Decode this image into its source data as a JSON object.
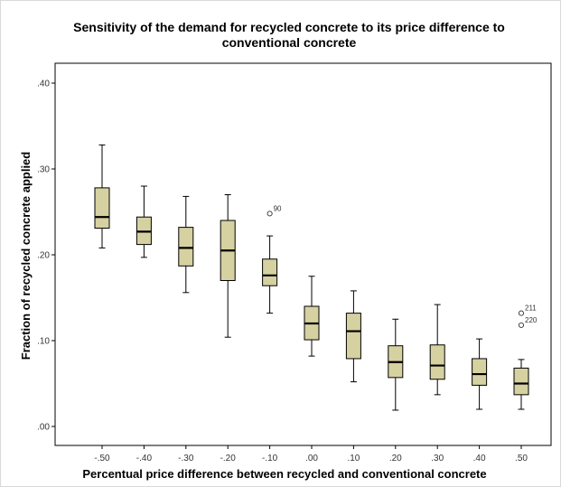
{
  "chart_data": {
    "type": "boxplot",
    "title": "Sensitivity of the demand for recycled concrete to its price difference to conventional concrete",
    "xlabel": "Percentual price difference between recycled and conventional concrete",
    "ylabel": "Fraction of recycled concrete applied",
    "ylim": [
      0.0,
      0.44
    ],
    "yticks": [
      0.0,
      0.1,
      0.2,
      0.3,
      0.4
    ],
    "ytick_labels": [
      ".00",
      ".10",
      ".20",
      ".30",
      ".40"
    ],
    "categories": [
      "-.50",
      "-.40",
      "-.30",
      "-.20",
      "-.10",
      ".00",
      ".10",
      ".20",
      ".30",
      ".40",
      ".50"
    ],
    "box_color": "#d6d1a0",
    "boxes": [
      {
        "min": 0.208,
        "q1": 0.231,
        "median": 0.244,
        "q3": 0.278,
        "max": 0.328,
        "outliers": []
      },
      {
        "min": 0.197,
        "q1": 0.212,
        "median": 0.227,
        "q3": 0.244,
        "max": 0.28,
        "outliers": []
      },
      {
        "min": 0.156,
        "q1": 0.187,
        "median": 0.208,
        "q3": 0.232,
        "max": 0.268,
        "outliers": []
      },
      {
        "min": 0.104,
        "q1": 0.17,
        "median": 0.205,
        "q3": 0.24,
        "max": 0.27,
        "outliers": []
      },
      {
        "min": 0.132,
        "q1": 0.164,
        "median": 0.176,
        "q3": 0.195,
        "max": 0.222,
        "outliers": [
          {
            "value": 0.248,
            "label": "90"
          }
        ]
      },
      {
        "min": 0.082,
        "q1": 0.101,
        "median": 0.12,
        "q3": 0.14,
        "max": 0.175,
        "outliers": []
      },
      {
        "min": 0.052,
        "q1": 0.079,
        "median": 0.111,
        "q3": 0.132,
        "max": 0.158,
        "outliers": []
      },
      {
        "min": 0.019,
        "q1": 0.057,
        "median": 0.075,
        "q3": 0.094,
        "max": 0.125,
        "outliers": []
      },
      {
        "min": 0.037,
        "q1": 0.055,
        "median": 0.071,
        "q3": 0.095,
        "max": 0.142,
        "outliers": []
      },
      {
        "min": 0.02,
        "q1": 0.048,
        "median": 0.061,
        "q3": 0.079,
        "max": 0.102,
        "outliers": []
      },
      {
        "min": 0.02,
        "q1": 0.037,
        "median": 0.05,
        "q3": 0.068,
        "max": 0.078,
        "outliers": [
          {
            "value": 0.132,
            "label": "211"
          },
          {
            "value": 0.118,
            "label": "220"
          }
        ]
      }
    ]
  }
}
